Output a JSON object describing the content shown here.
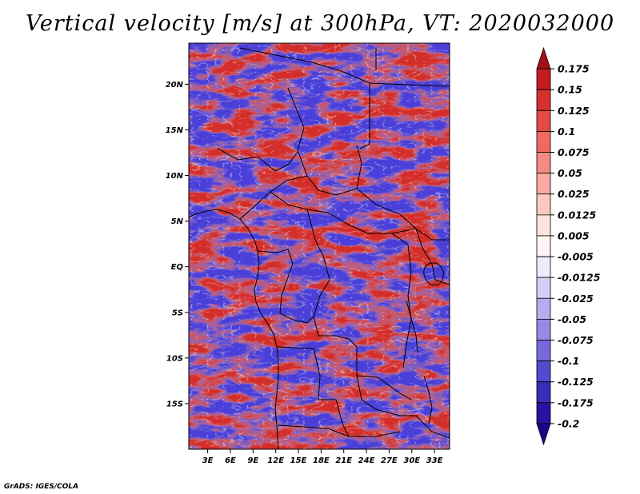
{
  "chart_data": {
    "type": "heatmap",
    "title": "Vertical velocity [m/s] at 300hPa, VT: 2020032000",
    "variable": "Vertical velocity",
    "units": "m/s",
    "level": "300hPa",
    "valid_time": "2020032000",
    "x_ticks": [
      "3E",
      "6E",
      "9E",
      "12E",
      "15E",
      "18E",
      "21E",
      "24E",
      "27E",
      "30E",
      "33E"
    ],
    "x_tick_values": [
      3,
      6,
      9,
      12,
      15,
      18,
      21,
      24,
      27,
      30,
      33
    ],
    "y_ticks": [
      "20N",
      "15N",
      "10N",
      "5N",
      "EQ",
      "5S",
      "10S",
      "15S"
    ],
    "y_tick_values": [
      20,
      15,
      10,
      5,
      0,
      -5,
      -10,
      -15
    ],
    "xlim": [
      0.5,
      35
    ],
    "ylim": [
      -20,
      24.5
    ],
    "colorbar": {
      "levels": [
        "0.175",
        "0.15",
        "0.125",
        "0.1",
        "0.075",
        "0.05",
        "0.025",
        "0.0125",
        "0.005",
        "-0.005",
        "-0.0125",
        "-0.025",
        "-0.05",
        "-0.075",
        "-0.1",
        "-0.125",
        "-0.175",
        "-0.2"
      ],
      "colors": [
        "#a50f15",
        "#c21b22",
        "#d7302f",
        "#e34a45",
        "#ee6a62",
        "#f58b83",
        "#f9aaa3",
        "#fcc8c2",
        "#fee3df",
        "#fff5f3",
        "#ecebfb",
        "#d2cff5",
        "#b4aeef",
        "#958be6",
        "#7569dc",
        "#5749cf",
        "#3a2bb8",
        "#2613a0",
        "#18078a"
      ]
    },
    "grid": false
  },
  "footer": {
    "credit": "GrADS: IGES/COLA"
  }
}
